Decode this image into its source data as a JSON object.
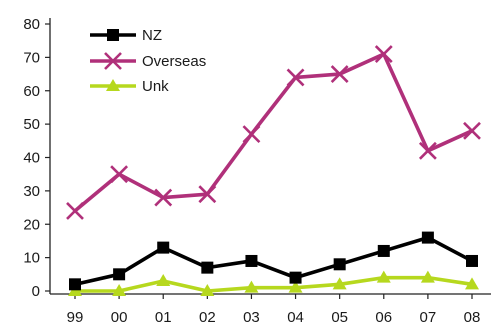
{
  "chart_data": {
    "type": "line",
    "title": "",
    "xlabel": "",
    "ylabel": "",
    "categories": [
      "99",
      "00",
      "01",
      "02",
      "03",
      "04",
      "05",
      "06",
      "07",
      "08"
    ],
    "ylim": [
      0,
      80
    ],
    "yticks": [
      0,
      10,
      20,
      30,
      40,
      50,
      60,
      70,
      80
    ],
    "grid": false,
    "legend_position": "top-left",
    "series": [
      {
        "name": "NZ",
        "color": "#000000",
        "marker": "square",
        "values": [
          2,
          5,
          13,
          7,
          9,
          4,
          8,
          12,
          16,
          9
        ]
      },
      {
        "name": "Overseas",
        "color": "#b0307a",
        "marker": "x",
        "values": [
          24,
          35,
          28,
          29,
          47,
          64,
          65,
          71,
          42,
          48
        ]
      },
      {
        "name": "Unk",
        "color": "#b6d81e",
        "marker": "triangle",
        "values": [
          0,
          0,
          3,
          0,
          1,
          1,
          2,
          4,
          4,
          2
        ]
      }
    ]
  }
}
